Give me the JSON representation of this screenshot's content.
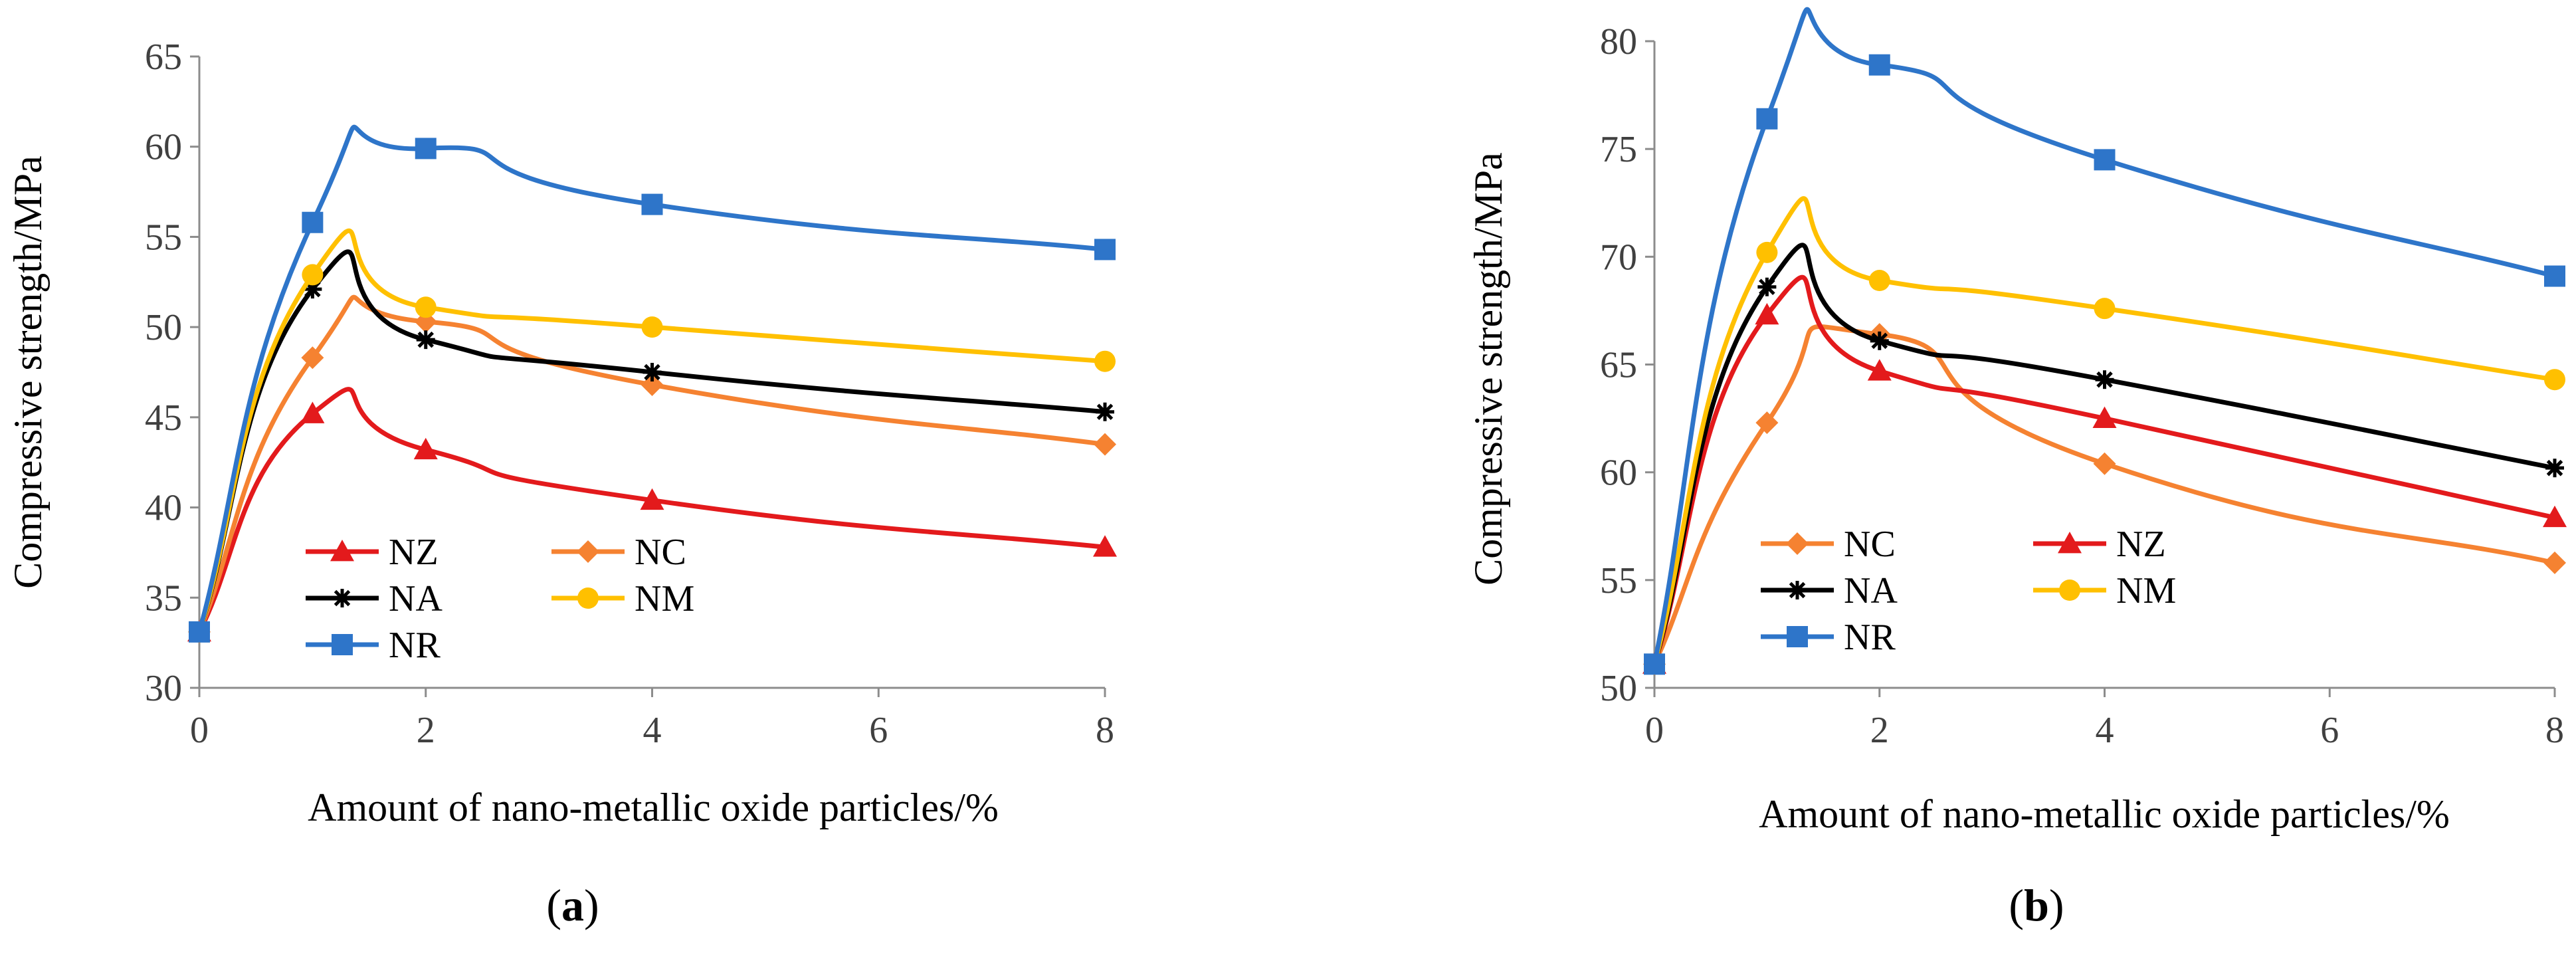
{
  "chart_data": [
    {
      "type": "line",
      "panel_label": "a",
      "xlabel": "Amount of  nano-metallic oxide particles/%",
      "ylabel": "Compressive strength/MPa",
      "xlim": [
        0,
        8
      ],
      "ylim": [
        30,
        65
      ],
      "xticks": [
        "0",
        "2",
        "4",
        "6",
        "8"
      ],
      "yticks": [
        "30",
        "35",
        "40",
        "45",
        "50",
        "55",
        "60",
        "65"
      ],
      "x": [
        0,
        1,
        2,
        4,
        8
      ],
      "legend_position": "lower-left",
      "series": [
        {
          "name": "NZ",
          "color": "#e31a1c",
          "marker": "triangle",
          "values": [
            33.1,
            45.2,
            43.2,
            40.4,
            37.8
          ]
        },
        {
          "name": "NC",
          "color": "#f58231",
          "marker": "diamond",
          "values": [
            33.1,
            48.3,
            50.3,
            46.8,
            43.5
          ]
        },
        {
          "name": "NA",
          "color": "#000000",
          "marker": "star",
          "values": [
            33.1,
            52.1,
            49.3,
            47.5,
            45.3
          ]
        },
        {
          "name": "NM",
          "color": "#ffc000",
          "marker": "circle",
          "values": [
            33.1,
            52.9,
            51.1,
            50.0,
            48.1
          ]
        },
        {
          "name": "NR",
          "color": "#2e75c9",
          "marker": "square",
          "values": [
            33.1,
            55.8,
            59.9,
            56.8,
            54.3
          ]
        }
      ]
    },
    {
      "type": "line",
      "panel_label": "b",
      "xlabel": "Amount of  nano-metallic oxide particles/%",
      "ylabel": "Compressive strength/MPa",
      "xlim": [
        0,
        8
      ],
      "ylim": [
        50,
        80
      ],
      "xticks": [
        "0",
        "2",
        "4",
        "6",
        "8"
      ],
      "yticks": [
        "50",
        "55",
        "60",
        "65",
        "70",
        "75",
        "80"
      ],
      "x": [
        0,
        1,
        2,
        4,
        8
      ],
      "legend_position": "lower-left",
      "series": [
        {
          "name": "NC",
          "color": "#f58231",
          "marker": "diamond",
          "values": [
            51.1,
            62.3,
            66.4,
            60.4,
            55.8
          ]
        },
        {
          "name": "NZ",
          "color": "#e31a1c",
          "marker": "triangle",
          "values": [
            51.1,
            67.3,
            64.7,
            62.5,
            57.9
          ]
        },
        {
          "name": "NA",
          "color": "#000000",
          "marker": "star",
          "values": [
            51.1,
            68.6,
            66.1,
            64.3,
            60.2
          ]
        },
        {
          "name": "NM",
          "color": "#ffc000",
          "marker": "circle",
          "values": [
            51.1,
            70.2,
            68.9,
            67.6,
            64.3
          ]
        },
        {
          "name": "NR",
          "color": "#2e75c9",
          "marker": "square",
          "values": [
            51.1,
            76.4,
            78.9,
            74.5,
            69.1
          ]
        }
      ]
    }
  ]
}
